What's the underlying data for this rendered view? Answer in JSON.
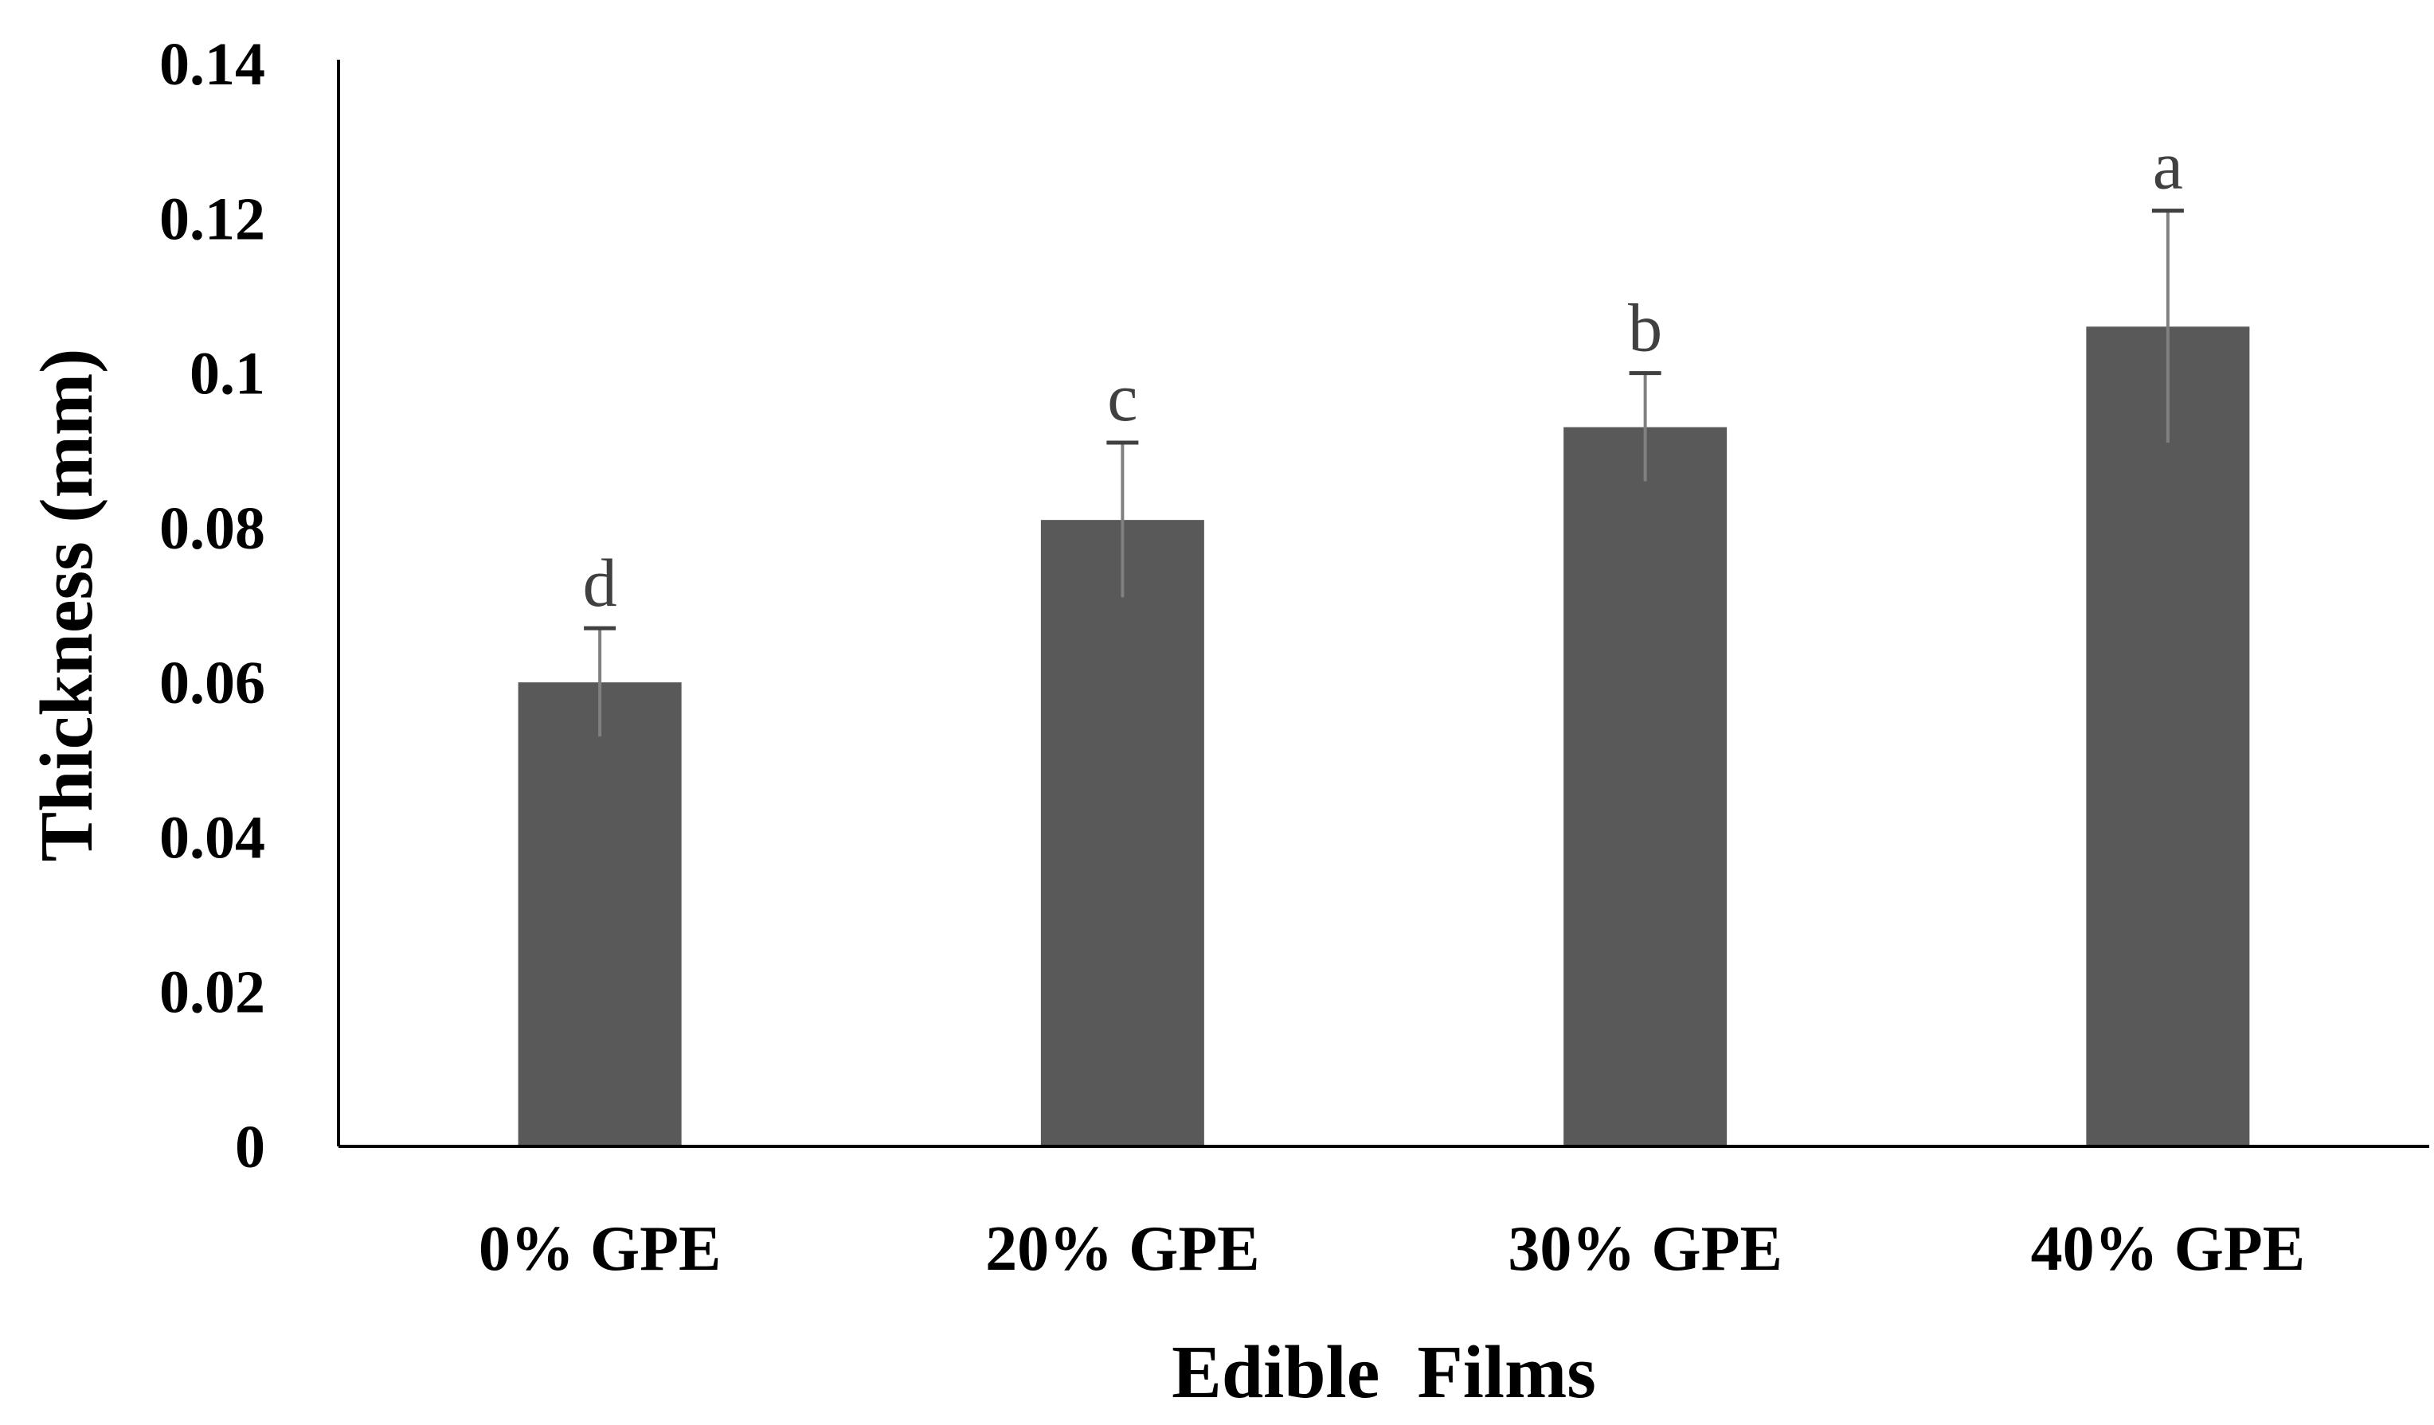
{
  "chart_data": {
    "type": "bar",
    "title": "",
    "xlabel": "Edible  Films",
    "ylabel": "Thickness (mm)",
    "ylim": [
      0,
      0.14
    ],
    "yticks": [
      "0",
      "0.02",
      "0.04",
      "0.06",
      "0.08",
      "0.1",
      "0.12",
      "0.14"
    ],
    "ytick_values": [
      0,
      0.02,
      0.04,
      0.06,
      0.08,
      0.1,
      0.12,
      0.14
    ],
    "categories": [
      "0% GPE",
      "20% GPE",
      "30% GPE",
      "40% GPE"
    ],
    "values": [
      0.06,
      0.081,
      0.093,
      0.106
    ],
    "errors": [
      0.007,
      0.01,
      0.007,
      0.015
    ],
    "significance_letters": [
      "d",
      "c",
      "b",
      "a"
    ],
    "grid": false,
    "legend": "none",
    "bar_color": "#595959",
    "error_color": "#808080"
  }
}
